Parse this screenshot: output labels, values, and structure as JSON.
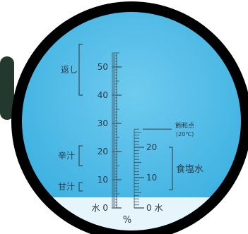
{
  "scale": {
    "unit": "%",
    "primary": {
      "min": 0,
      "max": 55,
      "major_labels": [
        {
          "value": 0,
          "text": "水 0"
        },
        {
          "value": 10,
          "text": "10"
        },
        {
          "value": 20,
          "text": "20"
        },
        {
          "value": 30,
          "text": "30"
        },
        {
          "value": 40,
          "text": "40"
        },
        {
          "value": 50,
          "text": "50"
        }
      ]
    },
    "secondary": {
      "min": 0,
      "max": 26,
      "major_labels": [
        {
          "value": 0,
          "text": "0 水"
        },
        {
          "value": 10,
          "text": "10"
        },
        {
          "value": 20,
          "text": "20"
        }
      ]
    }
  },
  "ranges": {
    "kaeshi": {
      "label": "返し",
      "from": 40,
      "to": 58
    },
    "karajiru": {
      "label": "辛汁",
      "from": 15,
      "to": 22
    },
    "amajiru": {
      "label": "甘汁",
      "from": 6,
      "to": 9
    },
    "shokuensui": {
      "label": "食塩水",
      "from": 6,
      "to": 20
    }
  },
  "saturation": {
    "line1": "飽和点",
    "line2": "(20℃)",
    "value": 26
  },
  "colors": {
    "field": "#47b8e6",
    "field_light": "#6fcbef",
    "lower_field": "#e6f4fb",
    "bezel": "#000000",
    "scale_ink": "#3b4b57"
  }
}
